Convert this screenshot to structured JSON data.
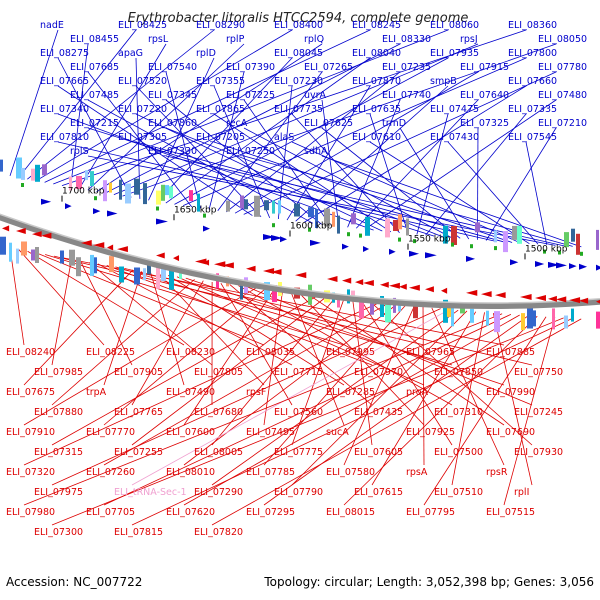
{
  "title": "Erythrobacter litoralis HTCC2594, complete genome",
  "footer": {
    "accession": "Accession: NC_007722",
    "summary": "Topology: circular; Length: 3,052,398 bp; Genes: 3,056"
  },
  "colors": {
    "forward": "#0000cc",
    "reverse": "#dd0000",
    "rna": "#f0a0d0",
    "backbone": "#888888",
    "marker": "#22aa22"
  },
  "scale_labels": [
    "1700 kbp",
    "1650 kbp",
    "1600 kbp",
    "1550 kbp",
    "1500 kbp"
  ],
  "top_labels": [
    "nadE",
    "ELI_08425",
    "ELI_08290",
    "ELI_08400",
    "ELI_08245",
    "ELI_08060",
    "ELI_08360",
    "ELI_08455",
    "rpsL",
    "rplP",
    "rplQ",
    "ELI_08330",
    "rpsJ",
    "ELI_08050",
    "ELI_08275",
    "apaG",
    "rplD",
    "ELI_08045",
    "ELI_08040",
    "ELI_07935",
    "ELI_07800",
    "ELI_07685",
    "ELI_07540",
    "ELI_07390",
    "ELI_07265",
    "ELI_07235",
    "ELI_07915",
    "ELI_07780",
    "ELI_07665",
    "ELI_07520",
    "ELI_07355",
    "ELI_07230",
    "ELI_07870",
    "smpB",
    "ELI_07660",
    "ELI_07485",
    "ELI_07345",
    "ELI_07225",
    "uvrA",
    "ELI_07740",
    "ELI_07640",
    "ELI_07480",
    "ELI_07340",
    "ELI_07220",
    "ELI_07865",
    "ELI_07735",
    "ELI_07635",
    "ELI_07475",
    "ELI_07335",
    "ELI_07215",
    "ELI_07860",
    "recA",
    "ELI_07625",
    "trmD",
    "ELI_07325",
    "ELI_07210",
    "ELI_07810",
    "ELI_07305",
    "ELI_07205",
    "alaS",
    "ELI_07610",
    "ELI_07430",
    "ELI_07545",
    "rplS",
    "ELI_07330",
    "ELI_07250",
    "sdhA"
  ],
  "bottom_labels": [
    "ELI_08240",
    "ELI_08225",
    "ELI_08230",
    "ELI_08035",
    "ELI_07995",
    "ELI_07965",
    "ELI_07885",
    "ELI_07985",
    "ELI_07905",
    "ELI_07805",
    "ELI_07715",
    "ELI_07970",
    "ELI_07850",
    "ELI_07750",
    "ELI_07675",
    "trpA",
    "ELI_07490",
    "rpsF",
    "ELI_07285",
    "proA",
    "ELI_07990",
    "ELI_07880",
    "ELI_07765",
    "ELI_07680",
    "ELI_07560",
    "ELI_07435",
    "ELI_07310",
    "ELI_07245",
    "ELI_07910",
    "ELI_07770",
    "ELI_07600",
    "ELI_07495",
    "sucA",
    "ELI_07925",
    "ELI_07690",
    "ELI_07315",
    "ELI_07255",
    "ELI_08005",
    "ELI_07775",
    "ELI_07605",
    "ELI_07500",
    "ELI_07930",
    "ELI_07320",
    "ELI_07260",
    "ELI_08010",
    "ELI_07785",
    "ELI_07580",
    "rpsA",
    "rpsR",
    "ELI_07975",
    "ELI_tRNA-Sec-1",
    "ELI_07290",
    "ELI_07790",
    "ELI_07615",
    "ELI_07510",
    "rplI",
    "ELI_07980",
    "ELI_07705",
    "ELI_07620",
    "ELI_07295",
    "ELI_08015",
    "ELI_07795",
    "ELI_07515",
    "ELI_07300",
    "ELI_07815",
    "ELI_07820"
  ]
}
